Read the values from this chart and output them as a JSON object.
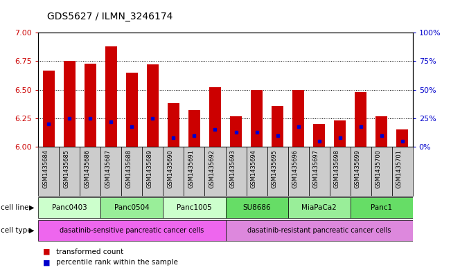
{
  "title": "GDS5627 / ILMN_3246174",
  "samples": [
    "GSM1435684",
    "GSM1435685",
    "GSM1435686",
    "GSM1435687",
    "GSM1435688",
    "GSM1435689",
    "GSM1435690",
    "GSM1435691",
    "GSM1435692",
    "GSM1435693",
    "GSM1435694",
    "GSM1435695",
    "GSM1435696",
    "GSM1435697",
    "GSM1435698",
    "GSM1435699",
    "GSM1435700",
    "GSM1435701"
  ],
  "transformed_count": [
    6.67,
    6.75,
    6.73,
    6.88,
    6.65,
    6.72,
    6.38,
    6.32,
    6.52,
    6.27,
    6.5,
    6.36,
    6.5,
    6.2,
    6.23,
    6.48,
    6.27,
    6.15
  ],
  "percentile_rank": [
    20,
    25,
    25,
    22,
    18,
    25,
    8,
    10,
    15,
    13,
    13,
    10,
    18,
    5,
    8,
    18,
    10,
    5
  ],
  "bar_color": "#cc0000",
  "dot_color": "#0000cc",
  "ylim_left": [
    6.0,
    7.0
  ],
  "ylim_right": [
    0,
    100
  ],
  "yticks_left": [
    6.0,
    6.25,
    6.5,
    6.75,
    7.0
  ],
  "yticks_right": [
    0,
    25,
    50,
    75,
    100
  ],
  "ytick_labels_right": [
    "0%",
    "25%",
    "50%",
    "75%",
    "100%"
  ],
  "hgrid_values": [
    6.25,
    6.5,
    6.75
  ],
  "cell_lines": [
    {
      "name": "Panc0403",
      "start": 0,
      "end": 2,
      "color": "#ccffcc"
    },
    {
      "name": "Panc0504",
      "start": 3,
      "end": 5,
      "color": "#99ee99"
    },
    {
      "name": "Panc1005",
      "start": 6,
      "end": 8,
      "color": "#ccffcc"
    },
    {
      "name": "SU8686",
      "start": 9,
      "end": 11,
      "color": "#66dd66"
    },
    {
      "name": "MiaPaCa2",
      "start": 12,
      "end": 14,
      "color": "#99ee99"
    },
    {
      "name": "Panc1",
      "start": 15,
      "end": 17,
      "color": "#66dd66"
    }
  ],
  "cell_types": [
    {
      "name": "dasatinib-sensitive pancreatic cancer cells",
      "start": 0,
      "end": 8,
      "color": "#ee66ee"
    },
    {
      "name": "dasatinib-resistant pancreatic cancer cells",
      "start": 9,
      "end": 17,
      "color": "#dd88dd"
    }
  ],
  "legend_items": [
    {
      "label": "transformed count",
      "color": "#cc0000"
    },
    {
      "label": "percentile rank within the sample",
      "color": "#0000cc"
    }
  ],
  "bg_color": "#ffffff",
  "plot_bg": "#ffffff",
  "xtick_bg": "#cccccc",
  "tick_color_left": "#cc0000",
  "tick_color_right": "#0000cc",
  "bar_bottom": 6.0,
  "bar_width": 0.55
}
